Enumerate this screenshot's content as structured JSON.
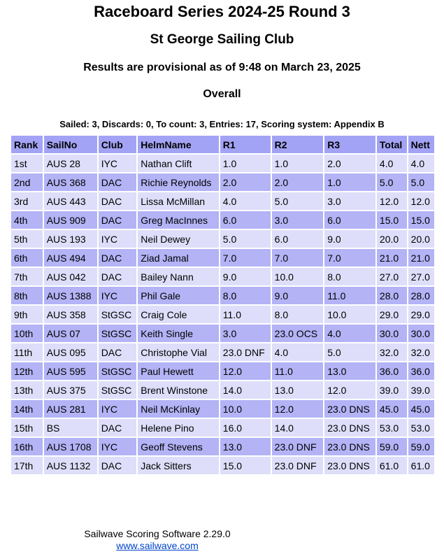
{
  "header": {
    "title": "Raceboard Series 2024-25 Round 3",
    "club": "St George Sailing Club",
    "status": "Results are provisional as of 9:48 on March 23, 2025",
    "section": "Overall",
    "summary": "Sailed: 3, Discards: 0, To count: 3, Entries: 17, Scoring system: Appendix B"
  },
  "table": {
    "columns": [
      "Rank",
      "SailNo",
      "Club",
      "HelmName",
      "R1",
      "R2",
      "R3",
      "Total",
      "Nett"
    ],
    "rows": [
      [
        "1st",
        "AUS 28",
        "IYC",
        "Nathan Clift",
        "1.0",
        "1.0",
        "2.0",
        "4.0",
        "4.0"
      ],
      [
        "2nd",
        "AUS 368",
        "DAC",
        "Richie Reynolds",
        "2.0",
        "2.0",
        "1.0",
        "5.0",
        "5.0"
      ],
      [
        "3rd",
        "AUS 443",
        "DAC",
        "Lissa McMillan",
        "4.0",
        "5.0",
        "3.0",
        "12.0",
        "12.0"
      ],
      [
        "4th",
        "AUS 909",
        "DAC",
        "Greg MacInnes",
        "6.0",
        "3.0",
        "6.0",
        "15.0",
        "15.0"
      ],
      [
        "5th",
        "AUS 193",
        "IYC",
        "Neil Dewey",
        "5.0",
        "6.0",
        "9.0",
        "20.0",
        "20.0"
      ],
      [
        "6th",
        "AUS 494",
        "DAC",
        "Ziad Jamal",
        "7.0",
        "7.0",
        "7.0",
        "21.0",
        "21.0"
      ],
      [
        "7th",
        "AUS 042",
        "DAC",
        "Bailey Nann",
        "9.0",
        "10.0",
        "8.0",
        "27.0",
        "27.0"
      ],
      [
        "8th",
        "AUS 1388",
        "IYC",
        "Phil Gale",
        "8.0",
        "9.0",
        "11.0",
        "28.0",
        "28.0"
      ],
      [
        "9th",
        "AUS 358",
        "StGSC",
        "Craig Cole",
        "11.0",
        "8.0",
        "10.0",
        "29.0",
        "29.0"
      ],
      [
        "10th",
        "AUS 07",
        "StGSC",
        "Keith Single",
        "3.0",
        "23.0 OCS",
        "4.0",
        "30.0",
        "30.0"
      ],
      [
        "11th",
        "AUS 095",
        "DAC",
        "Christophe Vial",
        "23.0 DNF",
        "4.0",
        "5.0",
        "32.0",
        "32.0"
      ],
      [
        "12th",
        "AUS 595",
        "StGSC",
        "Paul Hewett",
        "12.0",
        "11.0",
        "13.0",
        "36.0",
        "36.0"
      ],
      [
        "13th",
        "AUS 375",
        "StGSC",
        "Brent Winstone",
        "14.0",
        "13.0",
        "12.0",
        "39.0",
        "39.0"
      ],
      [
        "14th",
        "AUS 281",
        "IYC",
        "Neil McKinlay",
        "10.0",
        "12.0",
        "23.0 DNS",
        "45.0",
        "45.0"
      ],
      [
        "15th",
        "BS",
        "DAC",
        "Helene Pino",
        "16.0",
        "14.0",
        "23.0 DNS",
        "53.0",
        "53.0"
      ],
      [
        "16th",
        "AUS 1708",
        "IYC",
        "Geoff Stevens",
        "13.0",
        "23.0 DNF",
        "23.0 DNS",
        "59.0",
        "59.0"
      ],
      [
        "17th",
        "AUS 1132",
        "DAC",
        "Jack Sitters",
        "15.0",
        "23.0 DNF",
        "23.0 DNS",
        "61.0",
        "61.0"
      ]
    ]
  },
  "footer": {
    "software": "Sailwave Scoring Software 2.29.0",
    "link": "www.sailwave.com"
  }
}
